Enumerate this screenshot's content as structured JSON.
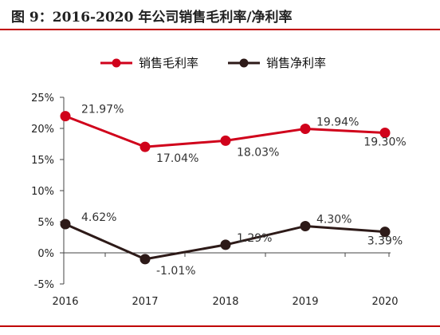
{
  "figure": {
    "title": "图 9：2016-2020 年公司销售毛利率/净利率"
  },
  "chart_data": {
    "type": "line",
    "title": "",
    "xlabel": "",
    "ylabel": "",
    "categories": [
      "2016",
      "2017",
      "2018",
      "2019",
      "2020"
    ],
    "ylim": [
      -5,
      25
    ],
    "yticks": [
      -5,
      0,
      5,
      10,
      15,
      20,
      25
    ],
    "ytick_labels": [
      "-5%",
      "0%",
      "5%",
      "10%",
      "15%",
      "20%",
      "25%"
    ],
    "grid": false,
    "legend_position": "top-center",
    "series": [
      {
        "name": "销售毛利率",
        "values": [
          21.97,
          17.04,
          18.03,
          19.94,
          19.3
        ],
        "labels": [
          "21.97%",
          "17.04%",
          "18.03%",
          "19.94%",
          "19.30%"
        ],
        "color": "#d0021b"
      },
      {
        "name": "销售净利率",
        "values": [
          4.62,
          -1.01,
          1.29,
          4.3,
          3.39
        ],
        "labels": [
          "4.62%",
          "-1.01%",
          "1.29%",
          "4.30%",
          "3.39%"
        ],
        "color": "#2d1a18"
      }
    ]
  },
  "colors": {
    "accent_rule": "#c00000",
    "axis": "#444444"
  }
}
